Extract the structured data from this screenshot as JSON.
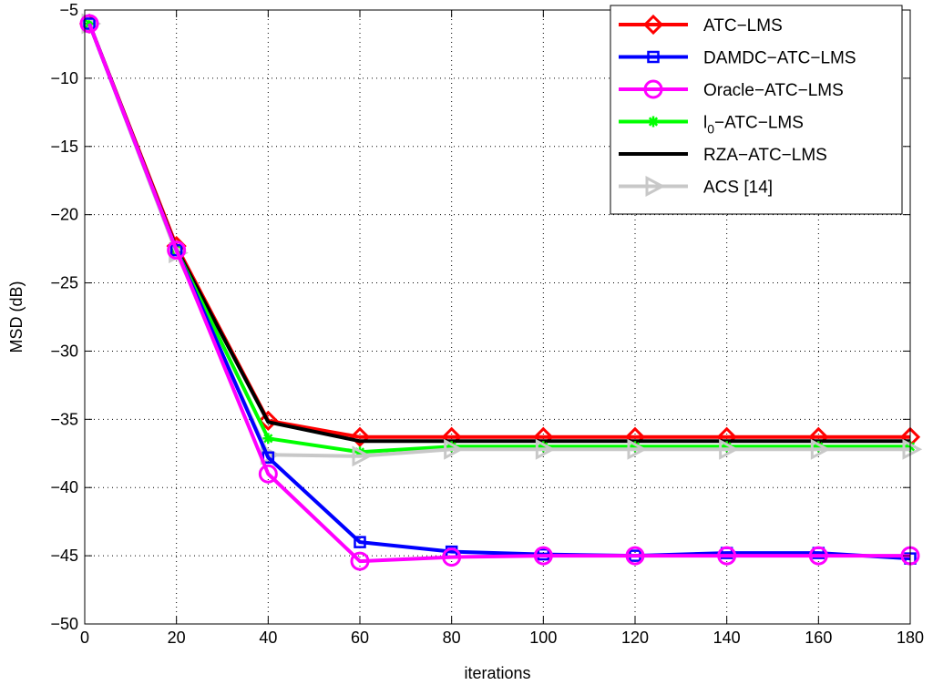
{
  "chart_data": {
    "type": "line",
    "title": "",
    "xlabel": "iterations",
    "ylabel": "MSD (dB)",
    "xlim": [
      0,
      180
    ],
    "ylim": [
      -50,
      -5
    ],
    "xticks": [
      0,
      20,
      40,
      60,
      80,
      100,
      120,
      140,
      160,
      180
    ],
    "yticks": [
      -5,
      -10,
      -15,
      -20,
      -25,
      -30,
      -35,
      -40,
      -45,
      -50
    ],
    "xtick_labels": [
      "0",
      "20",
      "40",
      "60",
      "80",
      "100",
      "120",
      "140",
      "160",
      "180"
    ],
    "ytick_labels": [
      "−5",
      "−10",
      "−15",
      "−20",
      "−25",
      "−30",
      "−35",
      "−40",
      "−45",
      "−50"
    ],
    "grid": true,
    "legend_position": "top-right",
    "x": [
      1,
      20,
      40,
      60,
      80,
      100,
      120,
      140,
      160,
      180
    ],
    "series": [
      {
        "name": "ATC−LMS",
        "legend_text": "ATC−LMS",
        "color": "#ff0000",
        "marker": "diamond",
        "values": [
          -6.0,
          -22.3,
          -35.1,
          -36.3,
          -36.3,
          -36.3,
          -36.3,
          -36.3,
          -36.3,
          -36.3
        ]
      },
      {
        "name": "DAMDC−ATC−LMS",
        "legend_text": "DAMDC−ATC−LMS",
        "color": "#0000ff",
        "marker": "square",
        "values": [
          -6.0,
          -22.6,
          -37.8,
          -44.0,
          -44.7,
          -44.9,
          -45.0,
          -44.8,
          -44.8,
          -45.2
        ]
      },
      {
        "name": "Oracle−ATC−LMS",
        "legend_text": "Oracle−ATC−LMS",
        "color": "#ff00ff",
        "marker": "circle",
        "values": [
          -6.0,
          -22.6,
          -39.0,
          -45.4,
          -45.1,
          -45.0,
          -45.0,
          -45.0,
          -45.0,
          -45.0
        ]
      },
      {
        "name": "l0−ATC−LMS",
        "legend_text": "l",
        "legend_sub": "0",
        "legend_rest": "−ATC−LMS",
        "color": "#00ff00",
        "marker": "star",
        "values": [
          -6.0,
          -22.6,
          -36.4,
          -37.4,
          -37.0,
          -37.0,
          -37.0,
          -37.0,
          -37.0,
          -37.0
        ]
      },
      {
        "name": "RZA−ATC−LMS",
        "legend_text": "RZA−ATC−LMS",
        "color": "#000000",
        "marker": "none",
        "values": [
          -6.0,
          -22.5,
          -35.2,
          -36.6,
          -36.6,
          -36.6,
          -36.6,
          -36.6,
          -36.6,
          -36.6
        ]
      },
      {
        "name": "ACS [14]",
        "legend_text": "ACS [14]",
        "color": "#c8c8c8",
        "marker": "triangle-right",
        "values": [
          -6.0,
          -22.8,
          -37.6,
          -37.7,
          -37.2,
          -37.2,
          -37.2,
          -37.2,
          -37.2,
          -37.2
        ]
      }
    ]
  }
}
